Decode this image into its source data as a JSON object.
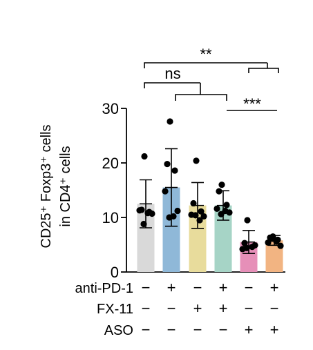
{
  "chart_data": {
    "type": "bar",
    "title": "",
    "xlabel": "",
    "ylabel_line1": "CD25⁺ Foxp3⁺ cells",
    "ylabel_line2": "in CD4⁺ cells",
    "ylim": [
      0,
      30
    ],
    "yticks": [
      0,
      10,
      20,
      30
    ],
    "grid": false,
    "bars": [
      {
        "mean": 12.5,
        "sd": 4.4,
        "color": "#d9d9d9",
        "points": [
          21.2,
          11.4,
          11.0,
          11.3,
          10.7,
          8.8,
          10.8
        ]
      },
      {
        "mean": 15.5,
        "sd": 7.1,
        "color": "#8fb8d8",
        "points": [
          27.6,
          19.8,
          18.6,
          14.8,
          11.2,
          10.0,
          10.2
        ]
      },
      {
        "mean": 12.2,
        "sd": 4.2,
        "color": "#e8dc9c",
        "points": [
          20.4,
          12.6,
          11.1,
          10.5,
          10.2,
          10.4,
          9.5
        ]
      },
      {
        "mean": 12.2,
        "sd": 2.7,
        "color": "#a6d4c6",
        "points": [
          16.0,
          14.8,
          12.3,
          11.6,
          10.9,
          10.6,
          11.2
        ]
      },
      {
        "mean": 5.5,
        "sd": 2.1,
        "color": "#e68fb8",
        "points": [
          9.5,
          5.3,
          4.6,
          4.2,
          4.9,
          4.4
        ]
      },
      {
        "mean": 5.8,
        "sd": 0.9,
        "color": "#f2b482",
        "points": [
          6.5,
          6.3,
          5.9,
          5.4,
          4.8,
          6.1,
          5.6
        ]
      }
    ],
    "significance": [
      {
        "label": "**"
      },
      {
        "label": "ns"
      },
      {
        "label": "***"
      }
    ],
    "conditions": [
      {
        "name": "anti-PD-1",
        "signs": [
          "−",
          "+",
          "−",
          "+",
          "−",
          "+"
        ]
      },
      {
        "name": "FX-11",
        "signs": [
          "−",
          "−",
          "+",
          "+",
          "−",
          "−"
        ]
      },
      {
        "name": "ASO",
        "signs": [
          "−",
          "−",
          "−",
          "−",
          "+",
          "+"
        ]
      }
    ]
  }
}
